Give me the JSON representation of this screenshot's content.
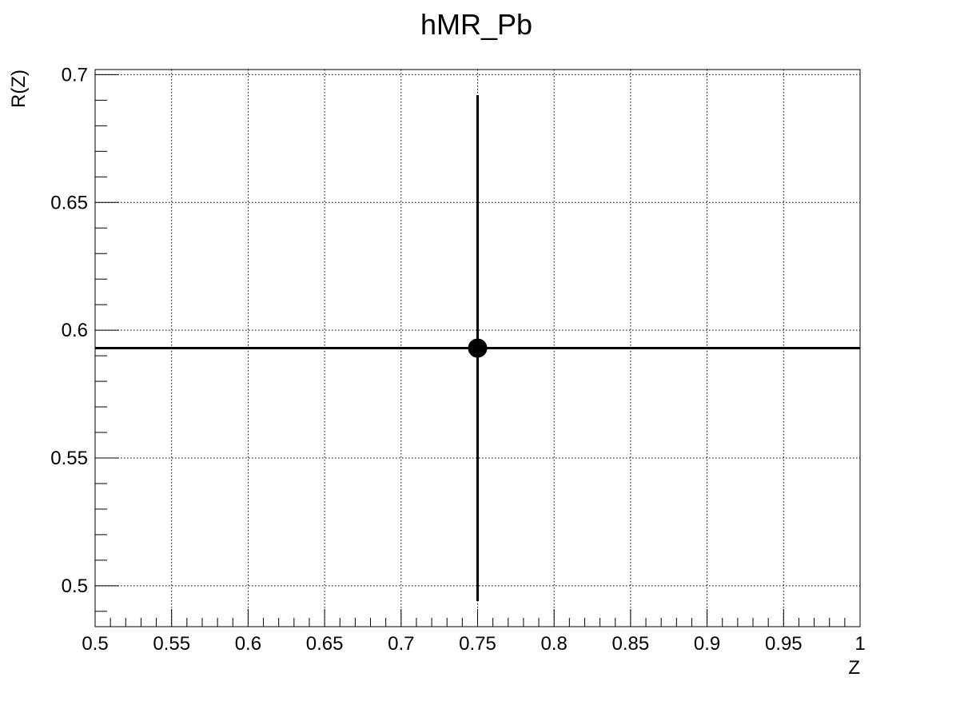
{
  "chart_data": {
    "type": "scatter",
    "title": "hMR_Pb",
    "xlabel": "Z",
    "ylabel": "R(Z)",
    "xlim": [
      0.5,
      1.0
    ],
    "ylim": [
      0.484,
      0.702
    ],
    "x_ticks": [
      0.5,
      0.55,
      0.6,
      0.65,
      0.7,
      0.75,
      0.8,
      0.85,
      0.9,
      0.95,
      1.0
    ],
    "x_tick_labels": [
      "0.5",
      "0.55",
      "0.6",
      "0.65",
      "0.7",
      "0.75",
      "0.8",
      "0.85",
      "0.9",
      "0.95",
      "1"
    ],
    "y_ticks": [
      0.5,
      0.55,
      0.6,
      0.65,
      0.7
    ],
    "y_tick_labels": [
      "0.5",
      "0.55",
      "0.6",
      "0.65",
      "0.7"
    ],
    "grid": true,
    "series": [
      {
        "points": [
          {
            "x": 0.75,
            "y": 0.593,
            "x_err": 0.25,
            "y_err": 0.099
          }
        ]
      }
    ],
    "colors": {
      "marker": "#000000",
      "frame": "#000000",
      "grid": "#000000"
    }
  }
}
